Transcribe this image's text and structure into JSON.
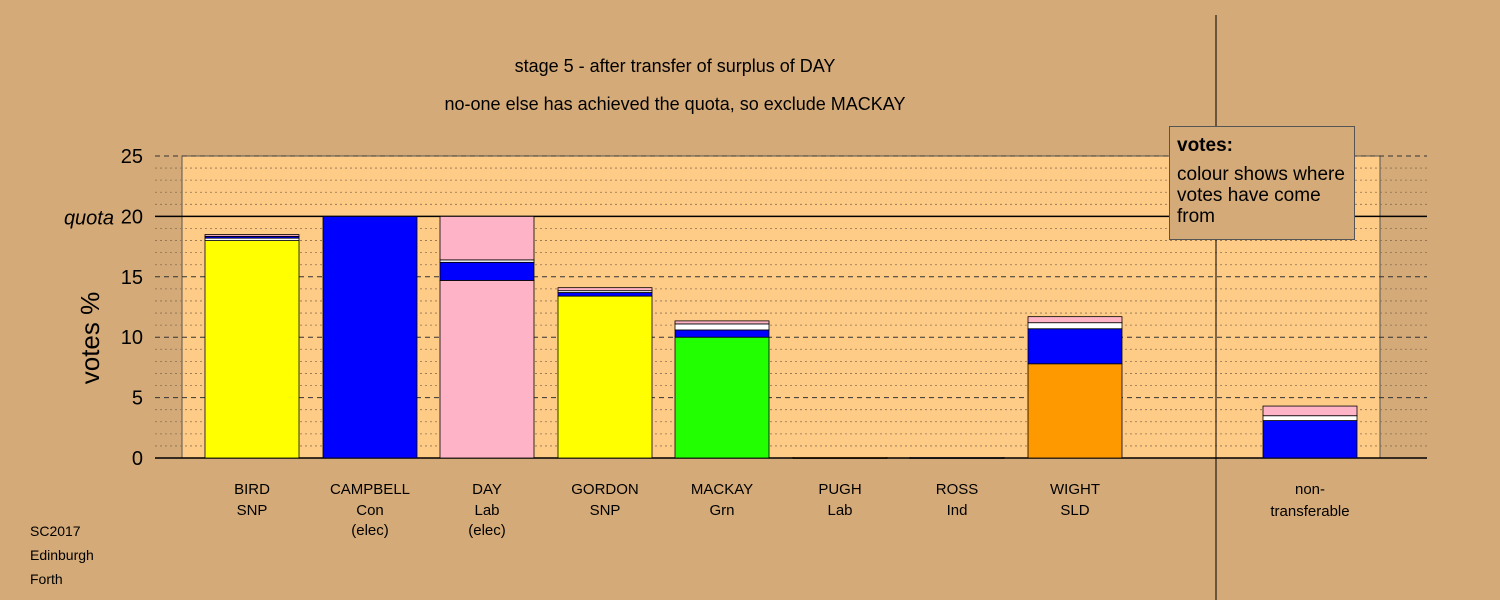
{
  "chart_data": {
    "type": "bar",
    "stacked": true,
    "title": "stage 5 - after transfer of surplus of DAY",
    "subtitle": "no-one else has achieved the quota, so exclude MACKAY",
    "ylabel": "votes %",
    "ylim": [
      0,
      25
    ],
    "yticks": [
      0,
      5,
      10,
      15,
      20,
      25
    ],
    "quota": 20,
    "quota_label": "quota",
    "categories": [
      {
        "name": "BIRD",
        "party": "SNP",
        "status": ""
      },
      {
        "name": "CAMPBELL",
        "party": "Con",
        "status": "(elec)"
      },
      {
        "name": "DAY",
        "party": "Lab",
        "status": "(elec)"
      },
      {
        "name": "GORDON",
        "party": "SNP",
        "status": ""
      },
      {
        "name": "MACKAY",
        "party": "Grn",
        "status": ""
      },
      {
        "name": "PUGH",
        "party": "Lab",
        "status": ""
      },
      {
        "name": "ROSS",
        "party": "Ind",
        "status": ""
      },
      {
        "name": "WIGHT",
        "party": "SLD",
        "status": ""
      }
    ],
    "nontransferable_label": [
      "non-",
      "transferable"
    ],
    "stacks": [
      [
        {
          "value": 18.0,
          "color": "#ffff00"
        },
        {
          "value": 0.2,
          "color": "#ffffff"
        },
        {
          "value": 0.15,
          "color": "#0000ff"
        },
        {
          "value": 0.15,
          "color": "#ffb3c6"
        }
      ],
      [
        {
          "value": 20.0,
          "color": "#0000ff"
        }
      ],
      [
        {
          "value": 14.7,
          "color": "#ffb3c6"
        },
        {
          "value": 1.5,
          "color": "#0000ff"
        },
        {
          "value": 0.2,
          "color": "#ffffff"
        },
        {
          "value": 3.6,
          "color": "#ffb3c6"
        }
      ],
      [
        {
          "value": 13.4,
          "color": "#ffff00"
        },
        {
          "value": 0.3,
          "color": "#0000ff"
        },
        {
          "value": 0.15,
          "color": "#ffffff"
        },
        {
          "value": 0.25,
          "color": "#ffb3c6"
        }
      ],
      [
        {
          "value": 10.0,
          "color": "#22ff00"
        },
        {
          "value": 0.6,
          "color": "#0000ff"
        },
        {
          "value": 0.5,
          "color": "#ffffff"
        },
        {
          "value": 0.25,
          "color": "#ffb3c6"
        }
      ],
      [
        {
          "value": 0.05,
          "color": "#ff9900"
        }
      ],
      [
        {
          "value": 0.05,
          "color": "#888888"
        }
      ],
      [
        {
          "value": 7.8,
          "color": "#ff9900"
        },
        {
          "value": 2.9,
          "color": "#0000ff"
        },
        {
          "value": 0.5,
          "color": "#ffffff"
        },
        {
          "value": 0.5,
          "color": "#ffb3c6"
        }
      ]
    ],
    "nontransferable": [
      {
        "value": 3.1,
        "color": "#0000ff"
      },
      {
        "value": 0.4,
        "color": "#ffffff"
      },
      {
        "value": 0.8,
        "color": "#ffb3c6"
      }
    ],
    "colors": {
      "background": "#d4aa78",
      "plot_area": "#ffcc88"
    }
  },
  "legend": {
    "title": "votes:",
    "text": "colour shows where votes have come from"
  },
  "footer": {
    "line1": "SC2017",
    "line2": "Edinburgh",
    "line3": "Forth"
  }
}
